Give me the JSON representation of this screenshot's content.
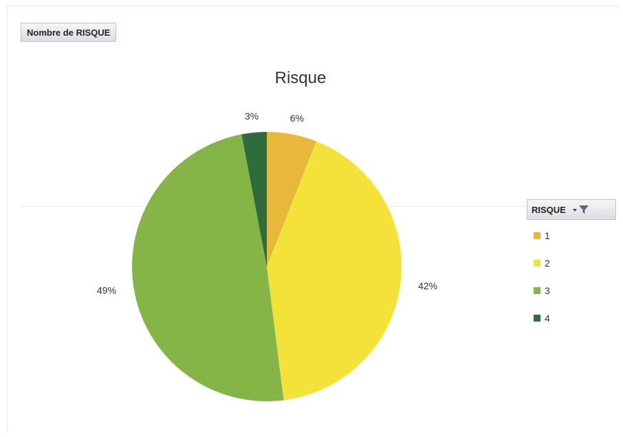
{
  "field_button": {
    "label": "Nombre de RISQUE"
  },
  "legend": {
    "header": "RISQUE"
  },
  "chart_data": {
    "type": "pie",
    "title": "Risque",
    "categories": [
      "1",
      "2",
      "3",
      "4"
    ],
    "values": [
      6,
      42,
      49,
      3
    ],
    "labels": [
      "6%",
      "42%",
      "49%",
      "3%"
    ],
    "colors": [
      "#e8b83a",
      "#f2e23a",
      "#86b547",
      "#2f6b3c"
    ],
    "legend_position": "right"
  }
}
